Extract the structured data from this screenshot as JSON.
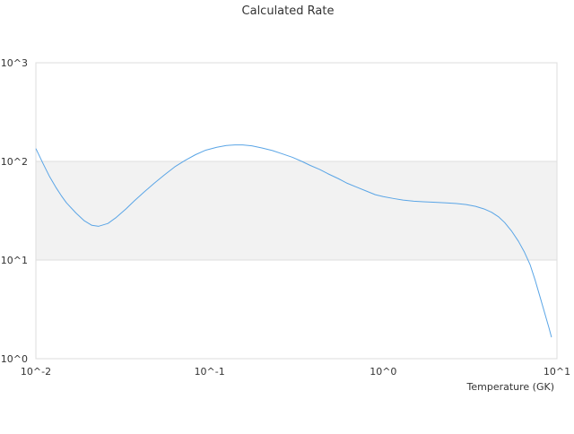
{
  "chart_data": {
    "type": "line",
    "title": "Calculated Rate",
    "xlabel": "Temperature (GK)",
    "ylabel": "",
    "xscale": "log",
    "yscale": "log",
    "xlim": [
      0.01,
      10
    ],
    "ylim": [
      1,
      1000
    ],
    "x_tick_values": [
      0.01,
      0.1,
      1,
      10
    ],
    "x_tick_labels": [
      "10^-2",
      "10^-1",
      "10^0",
      "10^1"
    ],
    "y_tick_values": [
      1,
      10,
      100,
      1000
    ],
    "y_tick_labels": [
      "10^0",
      "10^1",
      "10^2",
      "10^3"
    ],
    "band_fill": "#f2f2f2",
    "band_range": [
      10,
      100
    ],
    "grid": true,
    "grid_color": "#dddddd",
    "legend": "none",
    "series": [
      {
        "color": "#5aa5e6",
        "x": [
          0.01,
          0.011,
          0.012,
          0.013,
          0.014,
          0.015,
          0.017,
          0.019,
          0.021,
          0.023,
          0.026,
          0.029,
          0.033,
          0.037,
          0.042,
          0.048,
          0.055,
          0.063,
          0.072,
          0.083,
          0.095,
          0.11,
          0.125,
          0.14,
          0.155,
          0.175,
          0.2,
          0.23,
          0.26,
          0.3,
          0.34,
          0.38,
          0.43,
          0.48,
          0.55,
          0.62,
          0.7,
          0.8,
          0.9,
          1.0,
          1.15,
          1.3,
          1.5,
          1.7,
          2.0,
          2.3,
          2.6,
          3.0,
          3.4,
          3.8,
          4.2,
          4.6,
          5.0,
          5.5,
          6.0,
          6.5,
          7.0,
          7.5,
          8.0,
          8.5,
          9.0,
          9.3
        ],
        "y": [
          135,
          95,
          70,
          55,
          45,
          38,
          30,
          25,
          22.5,
          22,
          23.5,
          27,
          33,
          40,
          49,
          60,
          73,
          88,
          102,
          117,
          130,
          139,
          145,
          147,
          147,
          144,
          137,
          129,
          120,
          110,
          100,
          91,
          83,
          75,
          67,
          60,
          55,
          50,
          46,
          44,
          42,
          40.5,
          39.5,
          39,
          38.5,
          38,
          37.5,
          36.5,
          35,
          33,
          30.5,
          27.5,
          24,
          19.5,
          15.5,
          12,
          9,
          6.2,
          4.2,
          2.9,
          2.05,
          1.65
        ]
      }
    ]
  }
}
